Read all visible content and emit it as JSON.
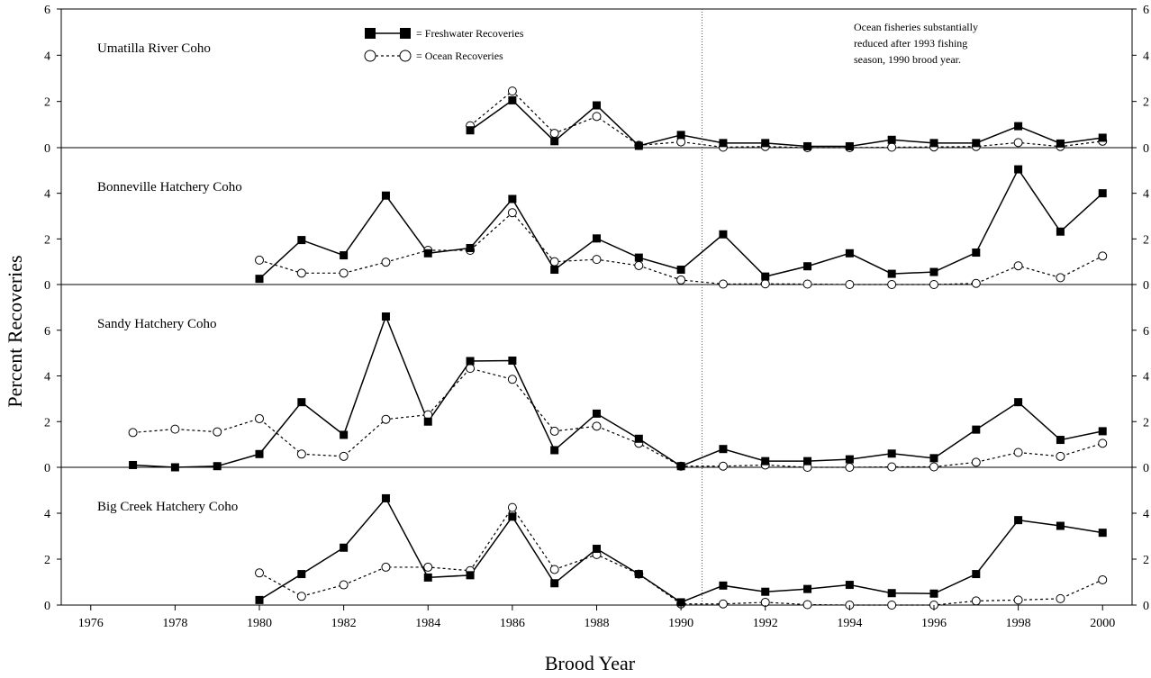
{
  "chart_data": {
    "type": "line",
    "xlabel": "Brood Year",
    "ylabel": "Percent Recoveries",
    "xlim": [
      1975.3,
      2000.7
    ],
    "x_ticks": [
      1976,
      1978,
      1980,
      1982,
      1984,
      1986,
      1988,
      1990,
      1992,
      1994,
      1996,
      1998,
      2000
    ],
    "legend": {
      "placement": "top-center",
      "entries": [
        {
          "label": "= Freshwater Recoveries",
          "marker": "filled-square",
          "line": "solid"
        },
        {
          "label": "= Ocean Recoveries",
          "marker": "open-circle",
          "line": "dashed"
        }
      ]
    },
    "annotation": {
      "lines": [
        "Ocean fisheries substantially",
        "reduced after 1993 fishing",
        "season, 1990 brood year."
      ],
      "vertical_line_x": 1990.5
    },
    "panels": [
      {
        "title": "Umatilla River Coho",
        "ylim": [
          0,
          6
        ],
        "y_ticks": [
          0,
          2,
          4,
          6
        ],
        "series": [
          {
            "name": "Freshwater Recoveries",
            "x": [
              1985,
              1986,
              1987,
              1988,
              1989,
              1990,
              1991,
              1992,
              1993,
              1994,
              1995,
              1996,
              1997,
              1998,
              1999,
              2000
            ],
            "y": [
              0.75,
              2.05,
              0.28,
              1.83,
              0.08,
              0.55,
              0.2,
              0.2,
              0.06,
              0.06,
              0.34,
              0.2,
              0.2,
              0.93,
              0.18,
              0.43
            ]
          },
          {
            "name": "Ocean Recoveries",
            "x": [
              1985,
              1986,
              1987,
              1988,
              1989,
              1990,
              1991,
              1992,
              1993,
              1994,
              1995,
              1996,
              1997,
              1998,
              1999,
              2000
            ],
            "y": [
              0.95,
              2.45,
              0.62,
              1.35,
              0.1,
              0.25,
              0.02,
              0.05,
              0.0,
              0.0,
              0.02,
              0.03,
              0.05,
              0.22,
              0.05,
              0.28
            ]
          }
        ]
      },
      {
        "title": "Bonneville Hatchery Coho",
        "ylim": [
          0,
          6
        ],
        "y_ticks": [
          0,
          2,
          4
        ],
        "series": [
          {
            "name": "Freshwater Recoveries",
            "x": [
              1980,
              1981,
              1982,
              1983,
              1984,
              1985,
              1986,
              1987,
              1988,
              1989,
              1990,
              1991,
              1992,
              1993,
              1994,
              1995,
              1996,
              1997,
              1998,
              1999,
              2000
            ],
            "y": [
              0.25,
              1.95,
              1.28,
              3.9,
              1.37,
              1.6,
              3.75,
              0.65,
              2.02,
              1.18,
              0.65,
              2.2,
              0.35,
              0.8,
              1.37,
              0.47,
              0.55,
              1.4,
              5.05,
              2.32,
              4.0
            ]
          },
          {
            "name": "Ocean Recoveries",
            "x": [
              1980,
              1981,
              1982,
              1983,
              1984,
              1985,
              1986,
              1987,
              1988,
              1989,
              1990,
              1991,
              1992,
              1993,
              1994,
              1995,
              1996,
              1997,
              1998,
              1999,
              2000
            ],
            "y": [
              1.07,
              0.5,
              0.5,
              0.98,
              1.5,
              1.5,
              3.15,
              1.0,
              1.1,
              0.83,
              0.2,
              0.02,
              0.03,
              0.02,
              0.0,
              0.0,
              0.0,
              0.05,
              0.82,
              0.3,
              1.25
            ]
          }
        ]
      },
      {
        "title": "Sandy Hatchery Coho",
        "ylim": [
          0,
          8
        ],
        "y_ticks": [
          0,
          2,
          4,
          6
        ],
        "series": [
          {
            "name": "Freshwater Recoveries",
            "x": [
              1977,
              1978,
              1979,
              1980,
              1981,
              1982,
              1983,
              1984,
              1985,
              1986,
              1987,
              1988,
              1989,
              1990,
              1991,
              1992,
              1993,
              1994,
              1995,
              1996,
              1997,
              1998,
              1999,
              2000
            ],
            "y": [
              0.1,
              0.0,
              0.05,
              0.58,
              2.85,
              1.42,
              6.6,
              2.0,
              4.65,
              4.67,
              0.75,
              2.35,
              1.25,
              0.05,
              0.8,
              0.27,
              0.27,
              0.35,
              0.6,
              0.4,
              1.65,
              2.85,
              1.2,
              1.58
            ]
          },
          {
            "name": "Ocean Recoveries",
            "x": [
              1977,
              1978,
              1979,
              1980,
              1981,
              1982,
              1983,
              1984,
              1985,
              1986,
              1987,
              1988,
              1989,
              1990,
              1991,
              1992,
              1993,
              1994,
              1995,
              1996,
              1997,
              1998,
              1999,
              2000
            ],
            "y": [
              1.52,
              1.67,
              1.55,
              2.13,
              0.58,
              0.48,
              2.1,
              2.3,
              4.33,
              3.85,
              1.58,
              1.8,
              1.05,
              0.05,
              0.05,
              0.1,
              0.0,
              0.0,
              0.02,
              0.02,
              0.22,
              0.65,
              0.48,
              1.05
            ]
          }
        ]
      },
      {
        "title": "Big Creek Hatchery Coho",
        "ylim": [
          0,
          6
        ],
        "y_ticks": [
          0,
          2,
          4
        ],
        "series": [
          {
            "name": "Freshwater Recoveries",
            "x": [
              1980,
              1981,
              1982,
              1983,
              1984,
              1985,
              1986,
              1987,
              1988,
              1989,
              1990,
              1991,
              1992,
              1993,
              1994,
              1995,
              1996,
              1997,
              1998,
              1999,
              2000
            ],
            "y": [
              0.22,
              1.35,
              2.5,
              4.65,
              1.2,
              1.3,
              3.85,
              0.95,
              2.45,
              1.35,
              0.12,
              0.85,
              0.58,
              0.7,
              0.88,
              0.52,
              0.5,
              1.35,
              3.7,
              3.45,
              3.15
            ]
          },
          {
            "name": "Ocean Recoveries",
            "x": [
              1980,
              1981,
              1982,
              1983,
              1984,
              1985,
              1986,
              1987,
              1988,
              1989,
              1990,
              1991,
              1992,
              1993,
              1994,
              1995,
              1996,
              1997,
              1998,
              1999,
              2000
            ],
            "y": [
              1.4,
              0.38,
              0.88,
              1.65,
              1.65,
              1.5,
              4.25,
              1.55,
              2.2,
              1.35,
              0.05,
              0.05,
              0.12,
              0.02,
              0.0,
              0.0,
              0.0,
              0.18,
              0.22,
              0.28,
              1.1
            ]
          }
        ]
      }
    ]
  }
}
